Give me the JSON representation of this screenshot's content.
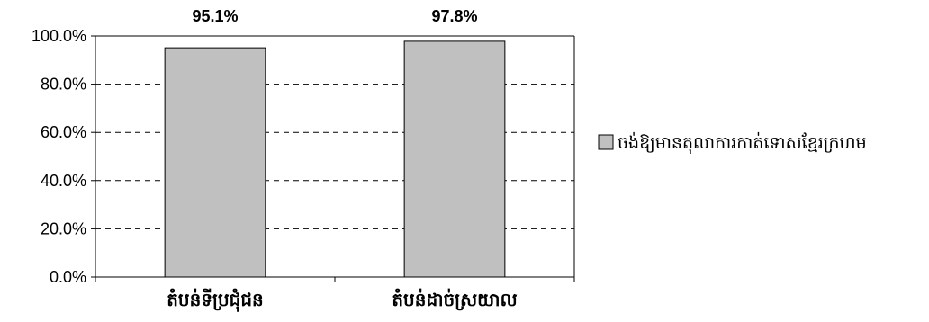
{
  "chart_data": {
    "type": "bar",
    "categories": [
      "តំបន់ទីប្រជុំជន",
      "តំបន់ដាច់ស្រយាល"
    ],
    "series": [
      {
        "name": "ចង់ឱ្យមានតុលាការកាត់ទោសខ្មែរក្រហម",
        "values": [
          95.1,
          97.8
        ]
      }
    ],
    "data_labels": [
      "95.1%",
      "97.8%"
    ],
    "y_ticks": [
      "0.0%",
      "20.0%",
      "40.0%",
      "60.0%",
      "80.0%",
      "100.0%"
    ],
    "ylim": [
      0,
      100
    ],
    "grid": true,
    "legend_position": "right",
    "colors": {
      "bar": "#c0c0c0",
      "bar_stroke": "#000000",
      "grid": "#000000"
    }
  }
}
